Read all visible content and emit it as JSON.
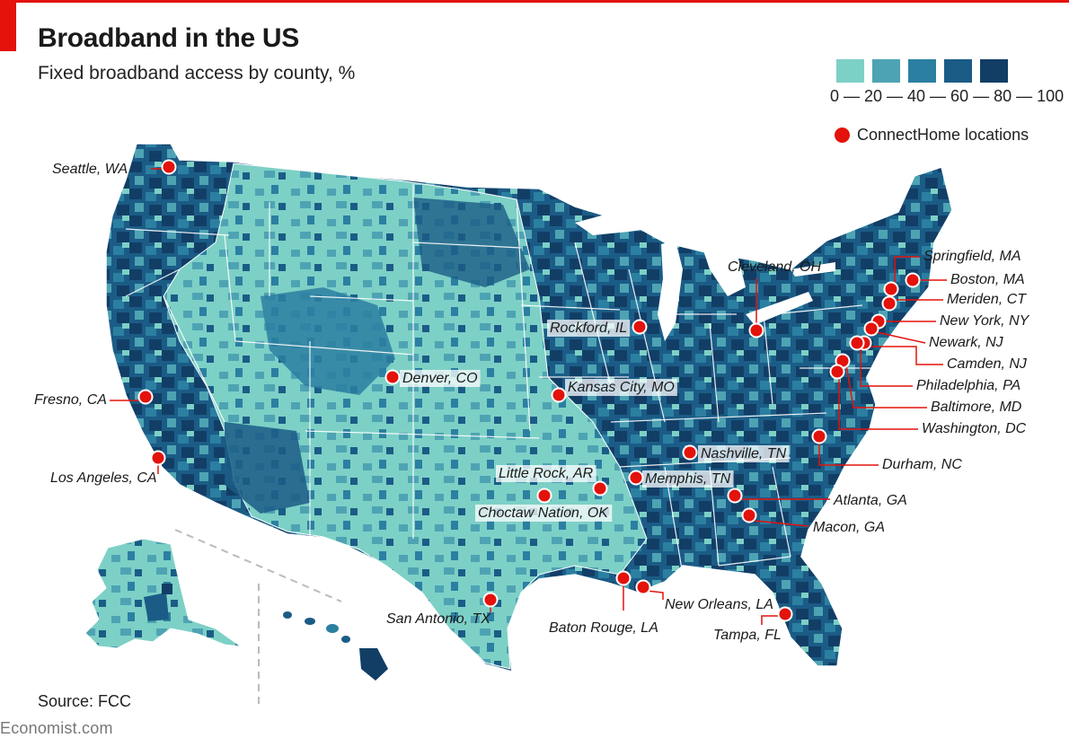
{
  "title": "Broadband in the US",
  "subtitle": "Fixed broadband access by county, %",
  "legend": {
    "colors": [
      "#7dd0c6",
      "#4ea3b3",
      "#2b7fa1",
      "#1b5c86",
      "#123e66"
    ],
    "ticks": "0 — 20 — 40 — 60 — 80 — 100",
    "marker_label": "ConnectHome locations",
    "marker_color": "#e3120b"
  },
  "source": "Source: FCC",
  "brand": "Economist.com",
  "locations": [
    {
      "name": "Seattle, WA"
    },
    {
      "name": "Fresno, CA"
    },
    {
      "name": "Los Angeles, CA"
    },
    {
      "name": "Denver, CO"
    },
    {
      "name": "Kansas City, MO"
    },
    {
      "name": "Rockford, IL"
    },
    {
      "name": "Cleveland, OH"
    },
    {
      "name": "Springfield, MA"
    },
    {
      "name": "Boston, MA"
    },
    {
      "name": "Meriden, CT"
    },
    {
      "name": "New York, NY"
    },
    {
      "name": "Newark, NJ"
    },
    {
      "name": "Camden, NJ"
    },
    {
      "name": "Philadelphia, PA"
    },
    {
      "name": "Baltimore, MD"
    },
    {
      "name": "Washington, DC"
    },
    {
      "name": "Durham, NC"
    },
    {
      "name": "Nashville, TN"
    },
    {
      "name": "Memphis, TN"
    },
    {
      "name": "Little Rock, AR"
    },
    {
      "name": "Choctaw Nation, OK"
    },
    {
      "name": "Atlanta, GA"
    },
    {
      "name": "Macon, GA"
    },
    {
      "name": "San Antonio, TX"
    },
    {
      "name": "Baton Rouge, LA"
    },
    {
      "name": "New Orleans, LA"
    },
    {
      "name": "Tampa, FL"
    }
  ]
}
